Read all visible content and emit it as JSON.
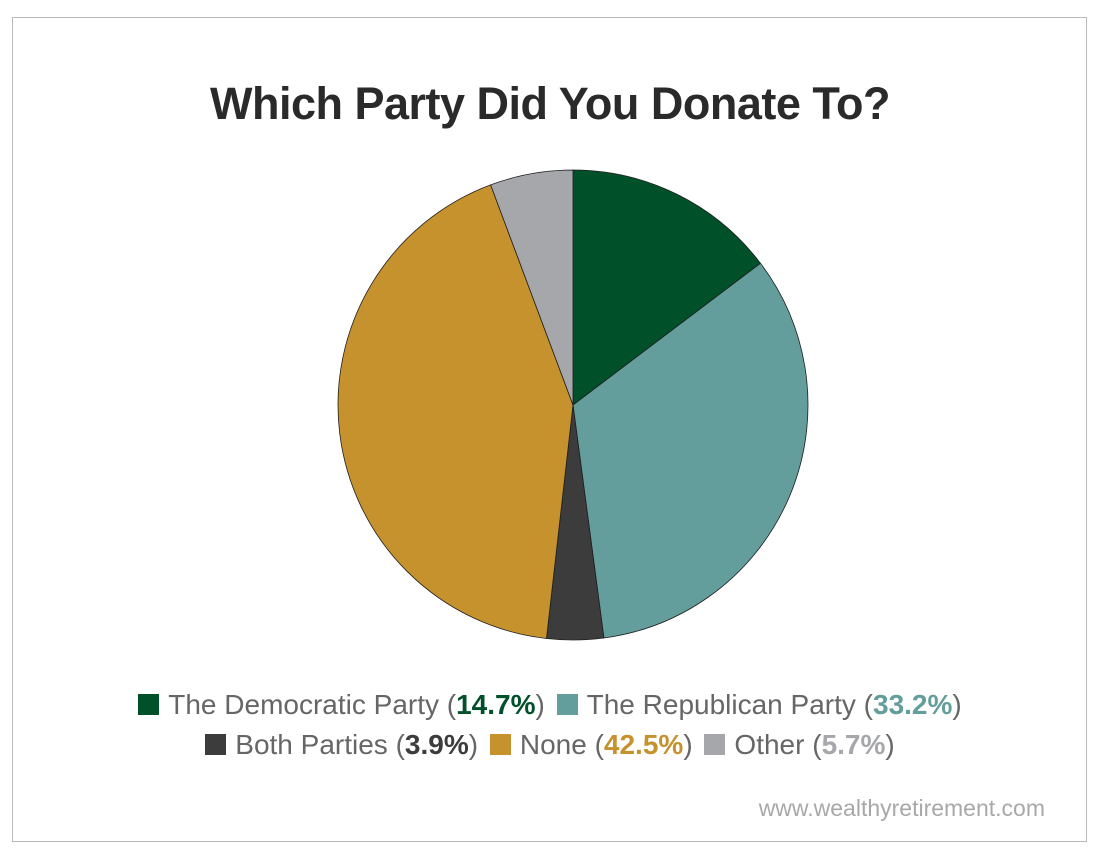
{
  "title": "Which Party Did You Donate To?",
  "footer": "www.wealthyretirement.com",
  "colors": {
    "democratic": "#00502a",
    "republican": "#639e9c",
    "both": "#3c3c3c",
    "none": "#c6922e",
    "other": "#a6a7ab"
  },
  "legend": [
    {
      "label": "The Democratic Party",
      "pct": "14.7%"
    },
    {
      "label": "The Republican Party",
      "pct": "33.2%"
    },
    {
      "label": "Both Parties",
      "pct": "3.9%"
    },
    {
      "label": "None",
      "pct": "42.5%"
    },
    {
      "label": "Other",
      "pct": "5.7%"
    }
  ],
  "chart_data": {
    "type": "pie",
    "title": "Which Party Did You Donate To?",
    "categories": [
      "The Democratic Party",
      "The Republican Party",
      "Both Parties",
      "None",
      "Other"
    ],
    "values": [
      14.7,
      33.2,
      3.9,
      42.5,
      5.7
    ],
    "colors": [
      "#00502a",
      "#639e9c",
      "#3c3c3c",
      "#c6922e",
      "#a6a7ab"
    ],
    "start": "12 o'clock",
    "direction": "clockwise",
    "legend_position": "bottom"
  }
}
